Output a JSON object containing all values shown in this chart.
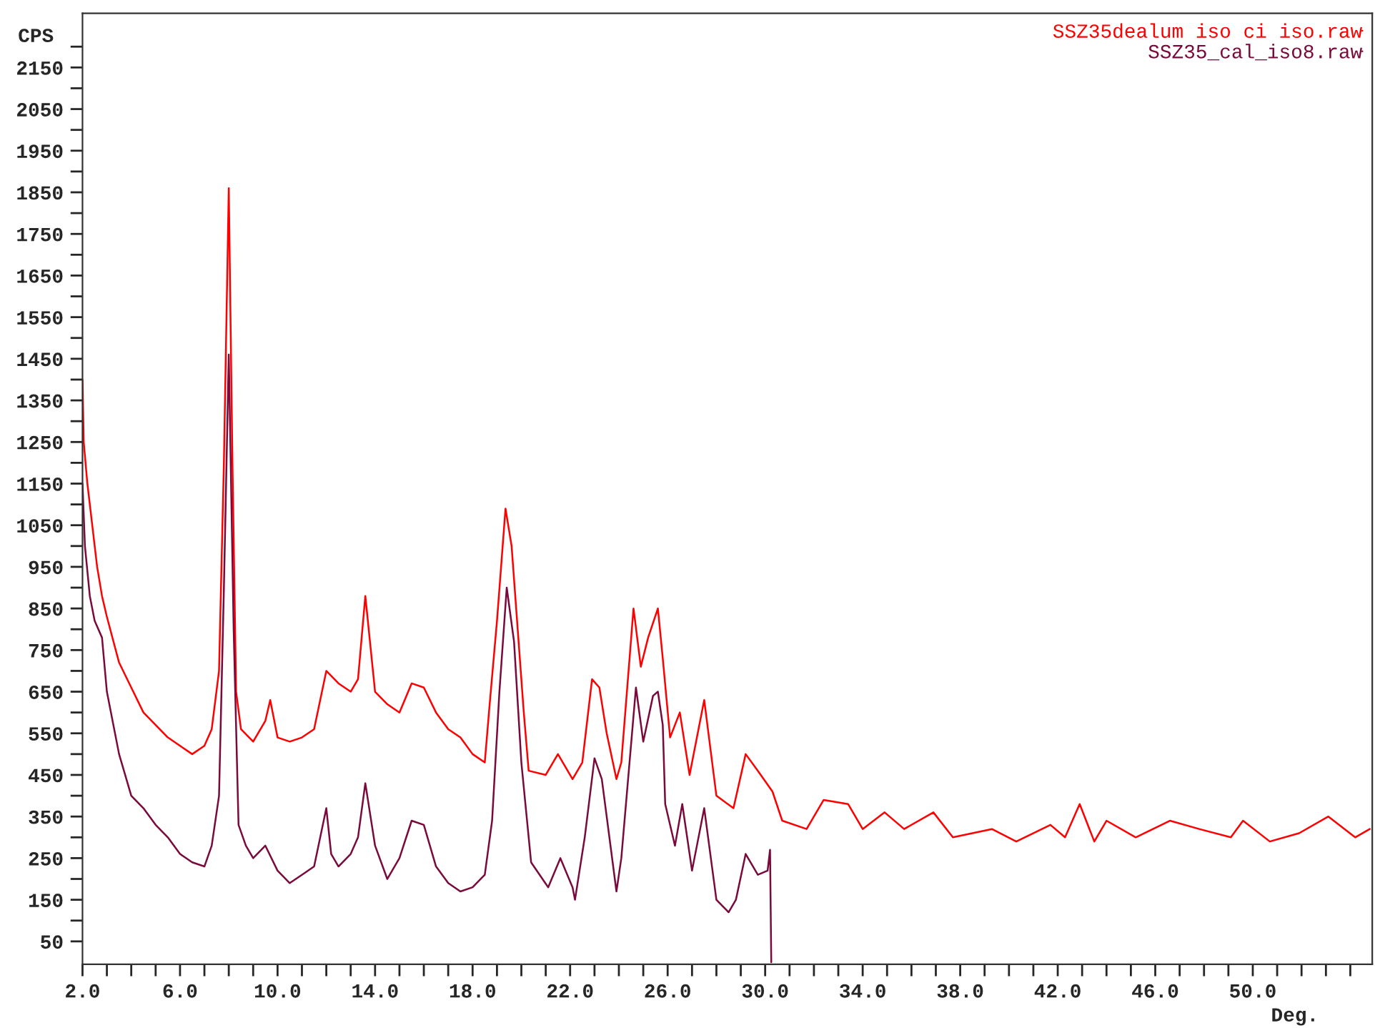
{
  "chart_data": {
    "type": "line",
    "ylabel": "CPS",
    "xlabel": "Deg.",
    "legend": "top right",
    "grid": false,
    "marker": "none",
    "line_style": "solid",
    "xlim": [
      2,
      54.9
    ],
    "ylim": [
      -5,
      2280
    ],
    "xticks": [
      {
        "value": 2,
        "label": "2.0"
      },
      {
        "value": 3,
        "label": null
      },
      {
        "value": 4,
        "label": null
      },
      {
        "value": 5,
        "label": null
      },
      {
        "value": 6,
        "label": "6.0"
      },
      {
        "value": 7,
        "label": null
      },
      {
        "value": 8,
        "label": null
      },
      {
        "value": 9,
        "label": null
      },
      {
        "value": 10,
        "label": "10.0"
      },
      {
        "value": 11,
        "label": null
      },
      {
        "value": 12,
        "label": null
      },
      {
        "value": 13,
        "label": null
      },
      {
        "value": 14,
        "label": "14.0"
      },
      {
        "value": 15,
        "label": null
      },
      {
        "value": 16,
        "label": null
      },
      {
        "value": 17,
        "label": null
      },
      {
        "value": 18,
        "label": "18.0"
      },
      {
        "value": 19,
        "label": null
      },
      {
        "value": 20,
        "label": null
      },
      {
        "value": 21,
        "label": null
      },
      {
        "value": 22,
        "label": "22.0"
      },
      {
        "value": 23,
        "label": null
      },
      {
        "value": 24,
        "label": null
      },
      {
        "value": 25,
        "label": null
      },
      {
        "value": 26,
        "label": "26.0"
      },
      {
        "value": 27,
        "label": null
      },
      {
        "value": 28,
        "label": null
      },
      {
        "value": 29,
        "label": null
      },
      {
        "value": 30,
        "label": "30.0"
      },
      {
        "value": 31,
        "label": null
      },
      {
        "value": 32,
        "label": null
      },
      {
        "value": 33,
        "label": null
      },
      {
        "value": 34,
        "label": "34.0"
      },
      {
        "value": 35,
        "label": null
      },
      {
        "value": 36,
        "label": null
      },
      {
        "value": 37,
        "label": null
      },
      {
        "value": 38,
        "label": "38.0"
      },
      {
        "value": 39,
        "label": null
      },
      {
        "value": 40,
        "label": null
      },
      {
        "value": 41,
        "label": null
      },
      {
        "value": 42,
        "label": "42.0"
      },
      {
        "value": 43,
        "label": null
      },
      {
        "value": 44,
        "label": null
      },
      {
        "value": 45,
        "label": null
      },
      {
        "value": 46,
        "label": "46.0"
      },
      {
        "value": 47,
        "label": null
      },
      {
        "value": 48,
        "label": null
      },
      {
        "value": 49,
        "label": null
      },
      {
        "value": 50,
        "label": "50.0"
      },
      {
        "value": 51,
        "label": null
      },
      {
        "value": 52,
        "label": null
      },
      {
        "value": 53,
        "label": null
      },
      {
        "value": 54,
        "label": null
      }
    ],
    "yticks": [
      50,
      {
        "value": 100,
        "label": null
      },
      150,
      {
        "value": 200,
        "label": null
      },
      250,
      {
        "value": 300,
        "label": null
      },
      350,
      {
        "value": 400,
        "label": null
      },
      450,
      {
        "value": 500,
        "label": null
      },
      550,
      {
        "value": 600,
        "label": null
      },
      650,
      {
        "value": 700,
        "label": null
      },
      750,
      {
        "value": 800,
        "label": null
      },
      850,
      {
        "value": 900,
        "label": null
      },
      950,
      {
        "value": 1000,
        "label": null
      },
      1050,
      {
        "value": 1100,
        "label": null
      },
      1150,
      {
        "value": 1200,
        "label": null
      },
      1250,
      {
        "value": 1300,
        "label": null
      },
      1350,
      {
        "value": 1400,
        "label": null
      },
      1450,
      {
        "value": 1500,
        "label": null
      },
      1550,
      {
        "value": 1600,
        "label": null
      },
      1650,
      {
        "value": 1700,
        "label": null
      },
      1750,
      {
        "value": 1800,
        "label": null
      },
      1850,
      {
        "value": 1900,
        "label": null
      },
      1950,
      {
        "value": 2000,
        "label": null
      },
      2050,
      {
        "value": 2100,
        "label": null
      },
      2150,
      {
        "value": 2200,
        "label": null
      }
    ],
    "series": [
      {
        "name": "SSZ35dealum iso ci iso.raw",
        "color": "#ff0000",
        "x": [
          2.0,
          2.05,
          2.2,
          2.4,
          2.6,
          2.8,
          3.0,
          3.5,
          4.0,
          4.5,
          5.0,
          5.5,
          6.0,
          6.5,
          7.0,
          7.3,
          7.6,
          7.8,
          8.0,
          8.15,
          8.3,
          8.5,
          9.0,
          9.5,
          9.7,
          10.0,
          10.5,
          11.0,
          11.5,
          12.0,
          12.5,
          13.0,
          13.3,
          13.6,
          14.0,
          14.5,
          15.0,
          15.5,
          16.0,
          16.5,
          17.0,
          17.5,
          18.0,
          18.5,
          18.7,
          19.0,
          19.35,
          19.6,
          20.1,
          20.3,
          21.0,
          21.5,
          22.1,
          22.5,
          22.9,
          23.2,
          23.5,
          23.9,
          24.1,
          24.6,
          24.9,
          25.2,
          25.6,
          25.8,
          26.1,
          26.5,
          26.9,
          27.5,
          28.0,
          28.7,
          29.2,
          29.7,
          30.3,
          30.7,
          31.7,
          32.4,
          33.4,
          34.0,
          34.9,
          35.7,
          36.9,
          37.7,
          39.3,
          40.3,
          41.7,
          42.3,
          42.9,
          43.5,
          44.0,
          45.2,
          46.6,
          47.8,
          49.1,
          49.6,
          50.7,
          51.9,
          53.1,
          54.2,
          54.8
        ],
        "values": [
          1400,
          1250,
          1150,
          1050,
          950,
          880,
          830,
          720,
          660,
          600,
          570,
          540,
          520,
          500,
          520,
          560,
          700,
          1200,
          1860,
          1200,
          650,
          560,
          530,
          580,
          630,
          540,
          530,
          540,
          560,
          700,
          670,
          650,
          680,
          880,
          650,
          620,
          600,
          670,
          660,
          600,
          560,
          540,
          500,
          480,
          620,
          820,
          1090,
          1000,
          600,
          460,
          450,
          500,
          440,
          480,
          680,
          660,
          550,
          440,
          480,
          850,
          710,
          780,
          850,
          730,
          540,
          600,
          450,
          630,
          400,
          370,
          500,
          460,
          410,
          340,
          320,
          390,
          380,
          320,
          360,
          320,
          360,
          300,
          320,
          290,
          330,
          300,
          380,
          290,
          340,
          300,
          340,
          320,
          300,
          340,
          290,
          310,
          350,
          300,
          320
        ]
      },
      {
        "name": "SSZ35_cal_iso8.raw",
        "color": "#7a0a3c",
        "x": [
          2.0,
          2.1,
          2.3,
          2.5,
          2.8,
          3.0,
          3.5,
          4.0,
          4.5,
          5.0,
          5.5,
          6.0,
          6.5,
          7.0,
          7.3,
          7.6,
          7.8,
          8.0,
          8.2,
          8.4,
          8.7,
          9.0,
          9.5,
          10.0,
          10.5,
          11.0,
          11.5,
          12.0,
          12.2,
          12.5,
          13.0,
          13.3,
          13.6,
          14.0,
          14.5,
          15.0,
          15.5,
          16.0,
          16.5,
          17.0,
          17.5,
          18.0,
          18.5,
          18.8,
          19.1,
          19.4,
          19.7,
          20.0,
          20.4,
          21.1,
          21.6,
          22.1,
          22.2,
          22.6,
          23.0,
          23.3,
          23.9,
          24.1,
          24.7,
          25.0,
          25.4,
          25.6,
          25.8,
          25.9,
          26.3,
          26.6,
          27.0,
          27.5,
          28.0,
          28.5,
          28.8,
          29.2,
          29.7,
          30.1,
          30.2,
          30.25
        ],
        "values": [
          1150,
          1000,
          880,
          820,
          780,
          650,
          500,
          400,
          370,
          330,
          300,
          260,
          240,
          230,
          280,
          400,
          900,
          1460,
          800,
          330,
          280,
          250,
          280,
          220,
          190,
          210,
          230,
          370,
          260,
          230,
          260,
          300,
          430,
          280,
          200,
          250,
          340,
          330,
          230,
          190,
          170,
          180,
          210,
          340,
          650,
          900,
          770,
          480,
          240,
          180,
          250,
          180,
          150,
          300,
          490,
          440,
          170,
          250,
          660,
          530,
          640,
          650,
          570,
          380,
          280,
          380,
          220,
          370,
          150,
          120,
          150,
          260,
          210,
          220,
          270,
          0
        ]
      }
    ]
  }
}
